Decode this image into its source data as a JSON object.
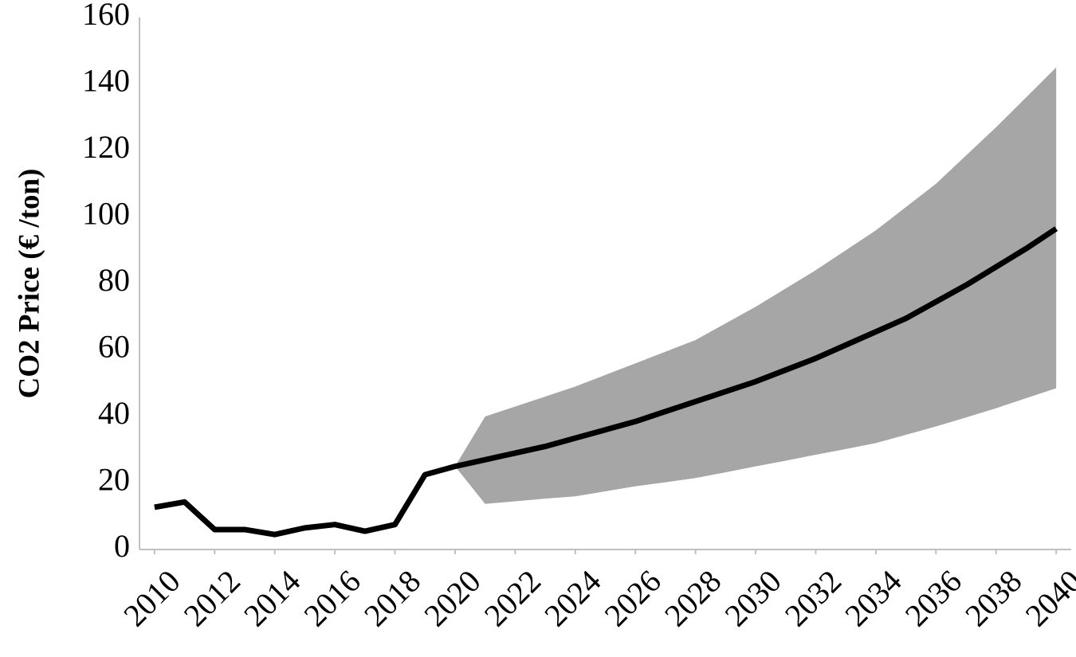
{
  "chart_data": {
    "type": "line",
    "y_label": "CO2 Price (€ /ton)",
    "x": [
      2010,
      2011,
      2012,
      2013,
      2014,
      2015,
      2016,
      2017,
      2018,
      2019,
      2020,
      2021,
      2022,
      2023,
      2024,
      2025,
      2026,
      2027,
      2028,
      2029,
      2030,
      2031,
      2032,
      2033,
      2034,
      2035,
      2036,
      2037,
      2038,
      2039,
      2040
    ],
    "series": [
      {
        "color": "#000000",
        "values": [
          12.7,
          14.3,
          6,
          6,
          4.5,
          6.5,
          7.5,
          5.5,
          7.5,
          22.5,
          25,
          27,
          29,
          31,
          33.5,
          36,
          38.5,
          41.5,
          44.5,
          47.5,
          50.5,
          54,
          57.5,
          61.5,
          65.5,
          69.5,
          74.5,
          79.5,
          85,
          90.5,
          96.5
        ]
      }
    ],
    "band": {
      "color": "#a6a6a6",
      "upper": [
        null,
        null,
        null,
        null,
        null,
        null,
        null,
        null,
        null,
        null,
        25,
        40,
        43,
        46,
        49,
        52.5,
        56,
        59.5,
        63,
        68,
        73,
        78.5,
        84,
        90,
        96,
        103,
        110,
        118.5,
        127,
        136,
        145
      ],
      "lower": [
        null,
        null,
        null,
        null,
        null,
        null,
        null,
        null,
        null,
        null,
        25,
        13.7,
        14.5,
        15.3,
        16,
        17.5,
        19,
        20.2,
        21.5,
        23.2,
        25,
        26.7,
        28.5,
        30.2,
        32,
        34.5,
        37,
        39.7,
        42.5,
        45.5,
        48.5
      ]
    },
    "xlim": [
      2009.5,
      2040.5
    ],
    "xticks": [
      2010,
      2012,
      2014,
      2016,
      2018,
      2020,
      2022,
      2024,
      2026,
      2028,
      2030,
      2032,
      2034,
      2036,
      2038,
      2040
    ],
    "ylim": [
      0,
      160
    ],
    "yticks": [
      0,
      20,
      40,
      60,
      80,
      100,
      120,
      140,
      160
    ],
    "grid": false
  }
}
